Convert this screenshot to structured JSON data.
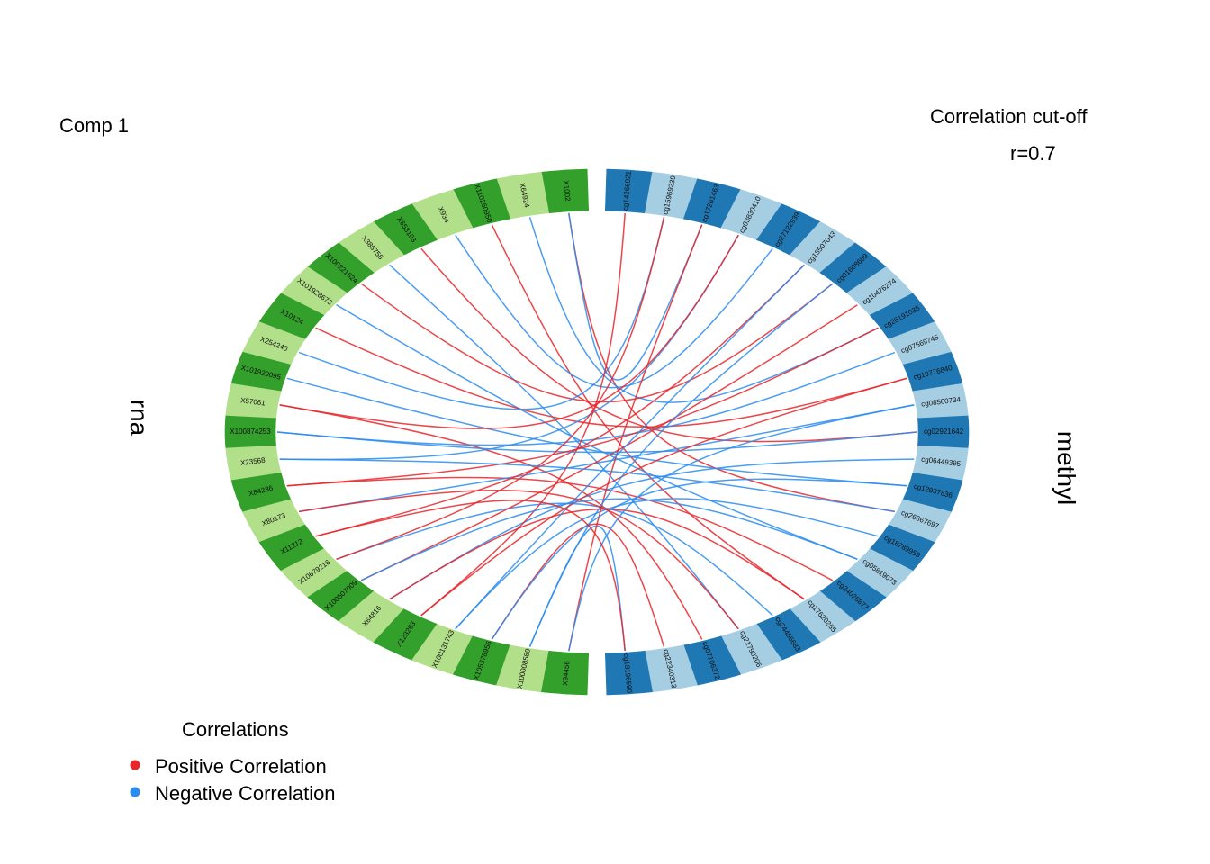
{
  "title": "Comp 1",
  "cutoff": {
    "label": "Correlation cut-off",
    "value": "r=0.7"
  },
  "blocks": [
    {
      "name": "rna",
      "colors": [
        "#33a02c",
        "#b2df8a"
      ]
    },
    {
      "name": "methyl",
      "colors": [
        "#1f78b4",
        "#a6cee3"
      ]
    }
  ],
  "legend": {
    "title": "Correlations",
    "items": [
      {
        "label": "Positive Correlation",
        "color": "#e8262a"
      },
      {
        "label": "Negative Correlation",
        "color": "#2b8cf0"
      }
    ]
  },
  "chart_data": {
    "type": "circos",
    "rna_features": [
      "X1002",
      "X64924",
      "X110260950",
      "X934",
      "X653103",
      "X386758",
      "X100221624",
      "X101928673",
      "X10124",
      "X254240",
      "X101929095",
      "X57061",
      "X100874253",
      "X23568",
      "X84236",
      "X80173",
      "X11212",
      "X10679216",
      "X100507009",
      "X64816",
      "X123263",
      "X100131743",
      "X105378956",
      "X100008589",
      "X94456"
    ],
    "methyl_features": [
      "cg14266921",
      "cg15969239",
      "cg17261463",
      "cg03830410",
      "cg27122939",
      "cg18507043",
      "cg01608669",
      "cg10476274",
      "cg26191035",
      "cg07569745",
      "cg19776840",
      "cg08560734",
      "cg02921642",
      "cg06449395",
      "cg12937836",
      "cg26667697",
      "cg18789959",
      "cg05819073",
      "cg24026877",
      "cg17620265",
      "cg24456683",
      "cg21790206",
      "cg07106372",
      "cg22340313",
      "cg18196590"
    ],
    "links": [
      {
        "rna": 0,
        "methyl": 15,
        "sign": "positive"
      },
      {
        "rna": 0,
        "methyl": 2,
        "sign": "negative"
      },
      {
        "rna": 1,
        "methyl": 8,
        "sign": "negative"
      },
      {
        "rna": 2,
        "methyl": 19,
        "sign": "positive"
      },
      {
        "rna": 3,
        "methyl": 4,
        "sign": "negative"
      },
      {
        "rna": 4,
        "methyl": 12,
        "sign": "positive"
      },
      {
        "rna": 5,
        "methyl": 21,
        "sign": "negative"
      },
      {
        "rna": 6,
        "methyl": 6,
        "sign": "positive"
      },
      {
        "rna": 7,
        "methyl": 17,
        "sign": "negative"
      },
      {
        "rna": 8,
        "methyl": 10,
        "sign": "positive"
      },
      {
        "rna": 9,
        "methyl": 1,
        "sign": "negative"
      },
      {
        "rna": 10,
        "methyl": 14,
        "sign": "negative"
      },
      {
        "rna": 11,
        "methyl": 22,
        "sign": "positive"
      },
      {
        "rna": 12,
        "methyl": 9,
        "sign": "negative"
      },
      {
        "rna": 13,
        "methyl": 3,
        "sign": "negative"
      },
      {
        "rna": 14,
        "methyl": 18,
        "sign": "positive"
      },
      {
        "rna": 15,
        "methyl": 11,
        "sign": "negative"
      },
      {
        "rna": 16,
        "methyl": 5,
        "sign": "positive"
      },
      {
        "rna": 17,
        "methyl": 20,
        "sign": "negative"
      },
      {
        "rna": 18,
        "methyl": 7,
        "sign": "positive"
      },
      {
        "rna": 19,
        "methyl": 13,
        "sign": "negative"
      },
      {
        "rna": 20,
        "methyl": 0,
        "sign": "positive"
      },
      {
        "rna": 21,
        "methyl": 16,
        "sign": "negative"
      },
      {
        "rna": 22,
        "methyl": 23,
        "sign": "positive"
      },
      {
        "rna": 23,
        "methyl": 24,
        "sign": "negative"
      },
      {
        "rna": 24,
        "methyl": 2,
        "sign": "positive"
      },
      {
        "rna": 12,
        "methyl": 12,
        "sign": "negative"
      },
      {
        "rna": 14,
        "methyl": 8,
        "sign": "positive"
      },
      {
        "rna": 19,
        "methyl": 19,
        "sign": "positive"
      },
      {
        "rna": 21,
        "methyl": 5,
        "sign": "negative"
      },
      {
        "rna": 17,
        "methyl": 1,
        "sign": "positive"
      },
      {
        "rna": 22,
        "methyl": 14,
        "sign": "negative"
      },
      {
        "rna": 20,
        "methyl": 10,
        "sign": "positive"
      },
      {
        "rna": 23,
        "methyl": 6,
        "sign": "negative"
      },
      {
        "rna": 15,
        "methyl": 21,
        "sign": "positive"
      },
      {
        "rna": 18,
        "methyl": 17,
        "sign": "negative"
      },
      {
        "rna": 24,
        "methyl": 11,
        "sign": "negative"
      },
      {
        "rna": 16,
        "methyl": 24,
        "sign": "positive"
      },
      {
        "rna": 13,
        "methyl": 15,
        "sign": "negative"
      },
      {
        "rna": 11,
        "methyl": 3,
        "sign": "positive"
      }
    ]
  }
}
